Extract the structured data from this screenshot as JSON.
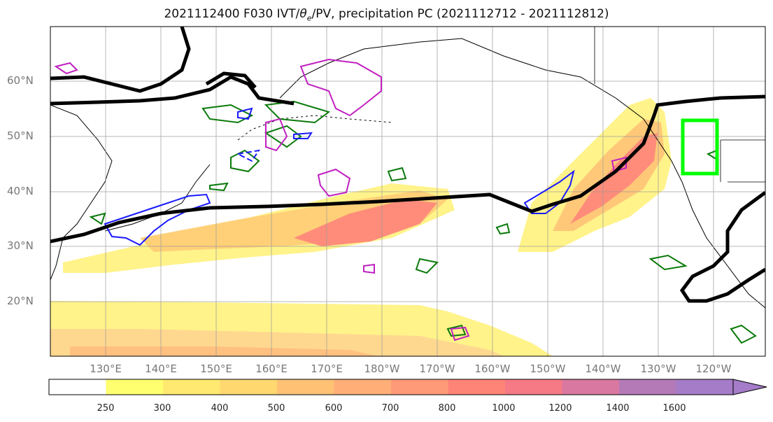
{
  "title": "2021112400 F030 IVT/θe/PV, precipitation PC (2021112712 - 2021112812)",
  "title_prefix": "2021112400 F030 IVT/",
  "title_theta": "θ",
  "title_sub": "e",
  "title_suffix": "/PV, precipitation PC (2021112712 - 2021112812)",
  "lat_labels": [
    "60°N",
    "50°N",
    "40°N",
    "30°N",
    "20°N"
  ],
  "lon_labels": [
    "130°E",
    "140°E",
    "150°E",
    "160°E",
    "170°E",
    "180°W",
    "170°W",
    "160°W",
    "150°W",
    "140°W",
    "130°W",
    "120°W"
  ],
  "colorbar": {
    "ticks": [
      "250",
      "300",
      "400",
      "500",
      "600",
      "700",
      "800",
      "1000",
      "1200",
      "1400",
      "1600"
    ],
    "colors": [
      "#ffffff",
      "#ffff70",
      "#ffe970",
      "#ffd870",
      "#ffc275",
      "#ffae78",
      "#ff9a78",
      "#ff8478",
      "#f57a85",
      "#d978a0",
      "#b47ab8",
      "#a47cc8"
    ]
  },
  "colors": {
    "ivt_low": "#fff38a",
    "ivt_mid": "#ffc878",
    "ivt_high": "#ff8c7a",
    "theta_e_contour": "#000000",
    "pv_contour": "#1a1aff",
    "precip_contour": "#0a7a0a",
    "pc_contour": "#c020c0",
    "target_box": "#00ff00"
  }
}
